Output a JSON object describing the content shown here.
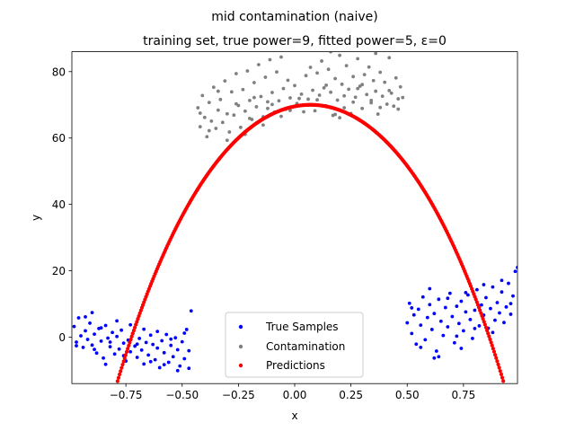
{
  "chart_data": {
    "type": "scatter",
    "title": "mid contamination (naive)",
    "subtitle": "training set, true power=9, fitted power=5, ε=0",
    "xlabel": "x",
    "ylabel": "y",
    "xlim": [
      -0.99,
      0.99
    ],
    "ylim": [
      -14,
      86
    ],
    "xticks": [
      -0.75,
      -0.5,
      -0.25,
      0.0,
      0.25,
      0.5,
      0.75
    ],
    "xtick_labels": [
      "−0.75",
      "−0.50",
      "−0.25",
      "0.00",
      "0.25",
      "0.50",
      "0.75"
    ],
    "yticks": [
      0,
      20,
      40,
      60,
      80
    ],
    "ytick_labels": [
      "0",
      "20",
      "40",
      "60",
      "80"
    ],
    "grid": false,
    "legend_position": "lower center",
    "series": [
      {
        "name": "True Samples",
        "color": "#0000ff",
        "points": [
          [
            -0.98,
            3.2
          ],
          [
            -0.97,
            -1.5
          ],
          [
            -0.96,
            5.8
          ],
          [
            -0.95,
            0.4
          ],
          [
            -0.94,
            -3.1
          ],
          [
            -0.93,
            1.9
          ],
          [
            -0.92,
            -0.7
          ],
          [
            -0.91,
            4.2
          ],
          [
            -0.9,
            -2.4
          ],
          [
            -0.89,
            0.9
          ],
          [
            -0.88,
            -4.8
          ],
          [
            -0.87,
            2.6
          ],
          [
            -0.86,
            -1.2
          ],
          [
            -0.85,
            -6.3
          ],
          [
            -0.84,
            3.5
          ],
          [
            -0.83,
            -0.3
          ],
          [
            -0.82,
            -2.9
          ],
          [
            -0.81,
            1.4
          ],
          [
            -0.8,
            -5.1
          ],
          [
            -0.79,
            0.2
          ],
          [
            -0.78,
            -3.6
          ],
          [
            -0.77,
            2.1
          ],
          [
            -0.76,
            -1.8
          ],
          [
            -0.75,
            -7.2
          ],
          [
            -0.74,
            -0.9
          ],
          [
            -0.73,
            -4.4
          ],
          [
            -0.72,
            1.1
          ],
          [
            -0.71,
            -2.7
          ],
          [
            -0.7,
            -6.1
          ],
          [
            -0.69,
            -0.4
          ],
          [
            -0.68,
            -3.9
          ],
          [
            -0.67,
            -8.1
          ],
          [
            -0.66,
            -1.6
          ],
          [
            -0.65,
            -5.4
          ],
          [
            -0.64,
            0.6
          ],
          [
            -0.63,
            -2.2
          ],
          [
            -0.62,
            -6.8
          ],
          [
            -0.61,
            -3.3
          ],
          [
            -0.6,
            -9.2
          ],
          [
            -0.59,
            -1.1
          ],
          [
            -0.58,
            -4.7
          ],
          [
            -0.57,
            0.8
          ],
          [
            -0.56,
            -7.6
          ],
          [
            -0.55,
            -2.5
          ],
          [
            -0.54,
            -5.9
          ],
          [
            -0.53,
            -0.2
          ],
          [
            -0.52,
            -3.8
          ],
          [
            -0.51,
            -8.7
          ],
          [
            -0.5,
            -1.4
          ],
          [
            -0.49,
            -6.5
          ],
          [
            -0.48,
            2.3
          ],
          [
            -0.47,
            -4.1
          ],
          [
            -0.46,
            7.9
          ],
          [
            -0.97,
            -2.6
          ],
          [
            -0.93,
            6.1
          ],
          [
            -0.89,
            -3.7
          ],
          [
            -0.86,
            2.8
          ],
          [
            -0.82,
            -1.5
          ],
          [
            -0.79,
            4.9
          ],
          [
            -0.76,
            -5.6
          ],
          [
            -0.73,
            3.7
          ],
          [
            -0.7,
            -2.1
          ],
          [
            -0.67,
            2.4
          ],
          [
            -0.64,
            -7.4
          ],
          [
            -0.61,
            1.7
          ],
          [
            -0.58,
            -8.3
          ],
          [
            -0.55,
            -0.6
          ],
          [
            -0.52,
            -10.1
          ],
          [
            -0.49,
            1.2
          ],
          [
            -0.47,
            -9.4
          ],
          [
            -0.84,
            -8.2
          ],
          [
            -0.9,
            7.4
          ],
          [
            0.5,
            4.3
          ],
          [
            0.51,
            10.2
          ],
          [
            0.52,
            1.1
          ],
          [
            0.53,
            6.7
          ],
          [
            0.54,
            -2.1
          ],
          [
            0.55,
            8.4
          ],
          [
            0.56,
            3.6
          ],
          [
            0.57,
            12.1
          ],
          [
            0.58,
            -0.8
          ],
          [
            0.59,
            5.9
          ],
          [
            0.6,
            9.8
          ],
          [
            0.61,
            2.3
          ],
          [
            0.62,
            7.1
          ],
          [
            0.63,
            -4.2
          ],
          [
            0.64,
            11.4
          ],
          [
            0.65,
            4.8
          ],
          [
            0.66,
            0.5
          ],
          [
            0.67,
            8.9
          ],
          [
            0.68,
            3.1
          ],
          [
            0.69,
            13.2
          ],
          [
            0.7,
            6.2
          ],
          [
            0.71,
            -1.7
          ],
          [
            0.72,
            9.3
          ],
          [
            0.73,
            4.1
          ],
          [
            0.74,
            10.8
          ],
          [
            0.75,
            1.9
          ],
          [
            0.76,
            7.6
          ],
          [
            0.77,
            12.7
          ],
          [
            0.78,
            5.3
          ],
          [
            0.79,
            -0.4
          ],
          [
            0.8,
            8.1
          ],
          [
            0.81,
            14.3
          ],
          [
            0.82,
            3.4
          ],
          [
            0.83,
            9.7
          ],
          [
            0.84,
            6.6
          ],
          [
            0.85,
            11.9
          ],
          [
            0.86,
            2.7
          ],
          [
            0.87,
            8.6
          ],
          [
            0.88,
            15.1
          ],
          [
            0.89,
            5.1
          ],
          [
            0.9,
            10.4
          ],
          [
            0.91,
            7.3
          ],
          [
            0.92,
            13.6
          ],
          [
            0.93,
            4.4
          ],
          [
            0.94,
            9.1
          ],
          [
            0.95,
            16.2
          ],
          [
            0.96,
            6.9
          ],
          [
            0.97,
            12.4
          ],
          [
            0.98,
            19.8
          ],
          [
            0.99,
            21.0
          ],
          [
            0.52,
            8.8
          ],
          [
            0.56,
            -3.1
          ],
          [
            0.6,
            14.6
          ],
          [
            0.64,
            -5.9
          ],
          [
            0.68,
            11.7
          ],
          [
            0.72,
            0.3
          ],
          [
            0.76,
            13.4
          ],
          [
            0.8,
            2.6
          ],
          [
            0.84,
            15.8
          ],
          [
            0.88,
            1.4
          ],
          [
            0.92,
            17.1
          ],
          [
            0.96,
            10.1
          ],
          [
            0.62,
            -6.3
          ],
          [
            0.74,
            -3.4
          ]
        ]
      },
      {
        "name": "Contamination",
        "color": "#808080",
        "points": [
          [
            -0.43,
            69.1
          ],
          [
            -0.42,
            63.4
          ],
          [
            -0.41,
            72.8
          ],
          [
            -0.4,
            66.2
          ],
          [
            -0.39,
            60.4
          ],
          [
            -0.38,
            70.7
          ],
          [
            -0.37,
            65.1
          ],
          [
            -0.36,
            75.3
          ],
          [
            -0.35,
            62.9
          ],
          [
            -0.34,
            68.4
          ],
          [
            -0.33,
            71.6
          ],
          [
            -0.32,
            64.7
          ],
          [
            -0.31,
            77.2
          ],
          [
            -0.3,
            67.3
          ],
          [
            -0.29,
            61.8
          ],
          [
            -0.28,
            73.9
          ],
          [
            -0.27,
            66.9
          ],
          [
            -0.26,
            79.4
          ],
          [
            -0.25,
            69.8
          ],
          [
            -0.24,
            63.2
          ],
          [
            -0.23,
            74.6
          ],
          [
            -0.22,
            68.1
          ],
          [
            -0.21,
            80.2
          ],
          [
            -0.2,
            71.3
          ],
          [
            -0.19,
            65.6
          ],
          [
            -0.18,
            76.7
          ],
          [
            -0.17,
            69.4
          ],
          [
            -0.16,
            82.1
          ],
          [
            -0.15,
            72.5
          ],
          [
            -0.14,
            66.4
          ],
          [
            -0.13,
            78.3
          ],
          [
            -0.12,
            70.9
          ],
          [
            -0.11,
            83.6
          ],
          [
            -0.1,
            73.7
          ],
          [
            -0.09,
            67.8
          ],
          [
            -0.08,
            79.9
          ],
          [
            -0.07,
            71.2
          ],
          [
            -0.06,
            84.4
          ],
          [
            -0.05,
            74.9
          ],
          [
            -0.04,
            68.6
          ],
          [
            -0.03,
            77.4
          ],
          [
            -0.02,
            72.1
          ],
          [
            -0.01,
            69.3
          ],
          [
            0.0,
            75.8
          ],
          [
            0.01,
            70.4
          ],
          [
            0.02,
            86.1
          ],
          [
            0.03,
            73.2
          ],
          [
            0.04,
            67.9
          ],
          [
            0.05,
            78.8
          ],
          [
            0.06,
            71.7
          ],
          [
            0.07,
            81.3
          ],
          [
            0.08,
            74.4
          ],
          [
            0.09,
            68.2
          ],
          [
            0.1,
            79.6
          ],
          [
            0.11,
            72.9
          ],
          [
            0.12,
            83.2
          ],
          [
            0.13,
            75.1
          ],
          [
            0.14,
            69.7
          ],
          [
            0.15,
            80.7
          ],
          [
            0.16,
            73.8
          ],
          [
            0.17,
            66.8
          ],
          [
            0.18,
            77.9
          ],
          [
            0.19,
            71.4
          ],
          [
            0.2,
            84.9
          ],
          [
            0.21,
            76.2
          ],
          [
            0.22,
            69.1
          ],
          [
            0.23,
            81.8
          ],
          [
            0.24,
            74.7
          ],
          [
            0.25,
            67.4
          ],
          [
            0.26,
            78.5
          ],
          [
            0.27,
            72.3
          ],
          [
            0.28,
            83.9
          ],
          [
            0.29,
            75.6
          ],
          [
            0.3,
            68.9
          ],
          [
            0.31,
            79.1
          ],
          [
            0.32,
            73.1
          ],
          [
            0.33,
            81.4
          ],
          [
            0.34,
            70.6
          ],
          [
            0.35,
            77.3
          ],
          [
            0.36,
            74.1
          ],
          [
            0.37,
            67.2
          ],
          [
            0.38,
            79.8
          ],
          [
            0.39,
            72.6
          ],
          [
            0.4,
            76.8
          ],
          [
            0.41,
            70.2
          ],
          [
            0.42,
            84.2
          ],
          [
            0.43,
            73.5
          ],
          [
            0.44,
            69.6
          ],
          [
            0.45,
            78.1
          ],
          [
            0.46,
            71.8
          ],
          [
            0.47,
            75.4
          ],
          [
            0.48,
            72.2
          ],
          [
            -0.42,
            67.5
          ],
          [
            -0.38,
            62.2
          ],
          [
            -0.34,
            74.1
          ],
          [
            -0.3,
            59.3
          ],
          [
            -0.26,
            70.3
          ],
          [
            -0.22,
            61.1
          ],
          [
            -0.18,
            72.2
          ],
          [
            -0.14,
            63.9
          ],
          [
            -0.1,
            70.1
          ],
          [
            -0.06,
            66.5
          ],
          [
            -0.02,
            68.3
          ],
          [
            0.02,
            71.9
          ],
          [
            0.06,
            69.9
          ],
          [
            0.1,
            71.5
          ],
          [
            0.14,
            75.9
          ],
          [
            0.18,
            67.1
          ],
          [
            0.22,
            72.7
          ],
          [
            0.26,
            70.8
          ],
          [
            0.3,
            76.1
          ],
          [
            0.34,
            71.3
          ],
          [
            0.38,
            69.2
          ],
          [
            0.42,
            74.3
          ],
          [
            0.46,
            68.7
          ],
          [
            0.16,
            86.0
          ],
          [
            0.36,
            85.5
          ],
          [
            -0.2,
            65.9
          ],
          [
            0.2,
            66.1
          ],
          [
            -0.12,
            68.9
          ],
          [
            0.28,
            74.9
          ]
        ]
      },
      {
        "name": "Predictions",
        "color": "#ff0000",
        "curve": {
          "x_range": [
            -0.99,
            0.99
          ],
          "vertex_x": 0.07,
          "vertex_y": 70,
          "quadratic_coef": 95,
          "quartic_coef": -25,
          "n_points": 440
        }
      }
    ]
  }
}
